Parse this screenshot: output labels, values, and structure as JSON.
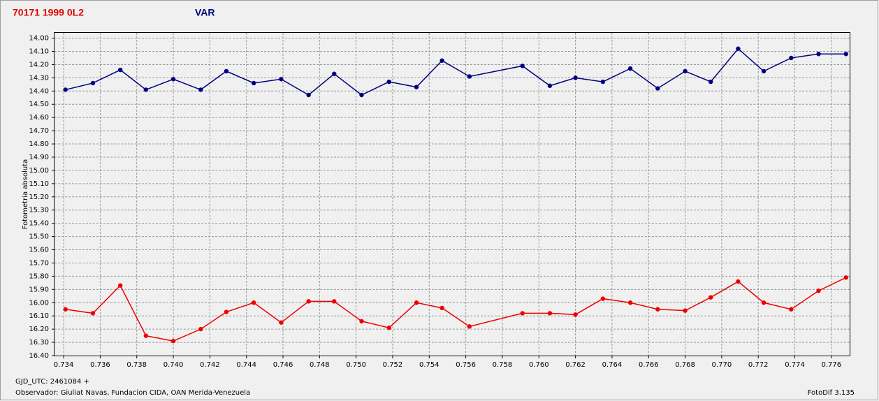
{
  "chart_data": {
    "type": "line",
    "title": "70171 1999 0L2",
    "subtitle": "VAR",
    "y_label": "Fotometría absoluta",
    "annotations": [
      "GJD_UTC: 2461084 +",
      "Observador: Giuliat Navas, Fundacion CIDA, OAN  Merida-Venezuela",
      "FotoDif 3.135"
    ],
    "x": [
      0.7341,
      0.7356,
      0.7371,
      0.7385,
      0.74,
      0.7415,
      0.7429,
      0.7444,
      0.7459,
      0.7474,
      0.7488,
      0.7503,
      0.7518,
      0.7533,
      0.7547,
      0.7562,
      0.7591,
      0.7606,
      0.762,
      0.7635,
      0.765,
      0.7665,
      0.768,
      0.7694,
      0.7709,
      0.7723,
      0.7738,
      0.7753,
      0.7768
    ],
    "series": [
      {
        "color": "#00007f",
        "values": [
          14.39,
          14.34,
          14.24,
          14.39,
          14.31,
          14.39,
          14.25,
          14.34,
          14.31,
          14.43,
          14.27,
          14.43,
          14.33,
          14.37,
          14.17,
          14.29,
          14.21,
          14.36,
          14.3,
          14.33,
          14.23,
          14.38,
          14.25,
          14.33,
          14.08,
          14.25,
          14.15,
          14.12,
          14.12
        ]
      },
      {
        "color": "#ee0000",
        "values": [
          16.05,
          16.08,
          15.87,
          16.25,
          16.29,
          16.2,
          16.07,
          16.0,
          16.15,
          15.99,
          15.99,
          16.14,
          16.19,
          16.0,
          16.04,
          16.18,
          16.08,
          16.08,
          16.09,
          15.97,
          16.0,
          16.05,
          16.06,
          15.96,
          15.84,
          16.0,
          16.05,
          15.91,
          15.81
        ]
      }
    ],
    "xlim": [
      0.7335,
      0.777
    ],
    "ylim": [
      16.4,
      13.96
    ],
    "xticks": [
      0.734,
      0.736,
      0.738,
      {
        "value": 0.74,
        "label": "0.740"
      },
      0.742,
      0.744,
      0.746,
      0.748,
      {
        "value": 0.75,
        "label": "0.750"
      },
      0.752,
      0.754,
      0.756,
      0.758,
      {
        "value": 0.76,
        "label": "0.760"
      },
      0.762,
      0.764,
      0.766,
      0.768,
      {
        "value": 0.77,
        "label": "0.770"
      },
      0.772,
      0.774,
      0.776
    ],
    "yticks": [
      {
        "value": 14.0,
        "label": "14.00"
      },
      {
        "value": 14.1,
        "label": "14.10"
      },
      {
        "value": 14.2,
        "label": "14.20"
      },
      {
        "value": 14.3,
        "label": "14.30"
      },
      {
        "value": 14.4,
        "label": "14.40"
      },
      {
        "value": 14.5,
        "label": "14.50"
      },
      {
        "value": 14.6,
        "label": "14.60"
      },
      {
        "value": 14.7,
        "label": "14.70"
      },
      {
        "value": 14.8,
        "label": "14.80"
      },
      {
        "value": 14.9,
        "label": "14.90"
      },
      {
        "value": 15.0,
        "label": "15.00"
      },
      {
        "value": 15.1,
        "label": "15.10"
      },
      {
        "value": 15.2,
        "label": "15.20"
      },
      {
        "value": 15.3,
        "label": "15.30"
      },
      {
        "value": 15.4,
        "label": "15.40"
      },
      {
        "value": 15.5,
        "label": "15.50"
      },
      {
        "value": 15.6,
        "label": "15.60"
      },
      {
        "value": 15.7,
        "label": "15.70"
      },
      {
        "value": 15.8,
        "label": "15.80"
      },
      {
        "value": 15.9,
        "label": "15.90"
      },
      {
        "value": 16.0,
        "label": "16.00"
      },
      {
        "value": 16.1,
        "label": "16.10"
      },
      {
        "value": 16.2,
        "label": "16.20"
      },
      {
        "value": 16.3,
        "label": "16.30"
      },
      {
        "value": 16.4,
        "label": "16.40"
      }
    ],
    "grid": true
  }
}
